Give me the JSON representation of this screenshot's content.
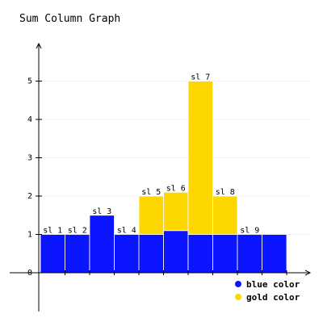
{
  "colors": {
    "blue": "#0A14FF",
    "gold": "#FFD700",
    "axis": "#000000",
    "grid": "#F0F0F0",
    "background": "#FFFFFF"
  },
  "chart_data": {
    "type": "bar",
    "stacked": true,
    "title": "Sum Column Graph",
    "xlabel": "",
    "ylabel": "",
    "ylim": [
      -1,
      6
    ],
    "yticks": [
      0,
      1,
      2,
      3,
      4,
      5
    ],
    "grid": true,
    "legend_position": "bottom-right",
    "categories": [
      "sl 1",
      "sl 2",
      "sl 3",
      "sl 4",
      "sl 5",
      "sl 6",
      "sl 7",
      "sl 8",
      "sl 9",
      ""
    ],
    "series": [
      {
        "name": "blue color",
        "color": "#0A14FF",
        "values": [
          1,
          1,
          1.5,
          1,
          1,
          1.1,
          1,
          1,
          1,
          1
        ]
      },
      {
        "name": "gold color",
        "color": "#FFD700",
        "values": [
          0,
          0,
          0,
          0,
          1,
          1,
          4,
          1,
          0,
          0
        ]
      }
    ]
  }
}
